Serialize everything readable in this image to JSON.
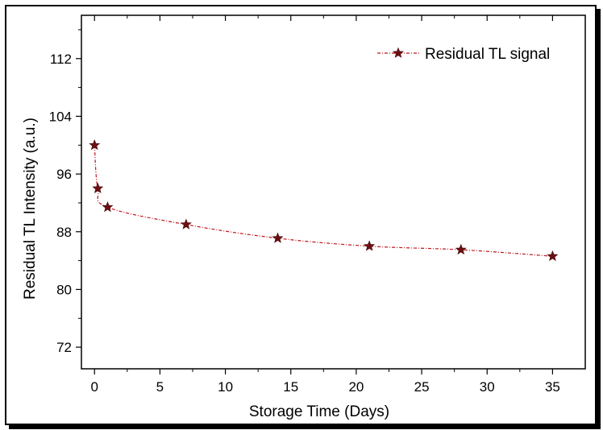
{
  "chart_data": {
    "type": "line",
    "xlabel": "Storage Time (Days)",
    "ylabel": "Residual TL Intensity (a.u.)",
    "xlim": [
      -1,
      37.5
    ],
    "ylim": [
      69,
      118
    ],
    "xticks": [
      0,
      5,
      10,
      15,
      20,
      25,
      30,
      35
    ],
    "yticks": [
      72,
      80,
      88,
      96,
      104,
      112
    ],
    "legend_position": "top-right",
    "grid": false,
    "series": [
      {
        "name": "Residual TL signal",
        "color": "#8b1a1a",
        "marker": "star",
        "line_style": "dash-dot",
        "x": [
          0,
          0.25,
          1,
          7,
          14,
          21,
          28,
          35
        ],
        "y": [
          100,
          94,
          91.4,
          89.0,
          87.1,
          86.0,
          85.5,
          84.6
        ]
      }
    ]
  }
}
